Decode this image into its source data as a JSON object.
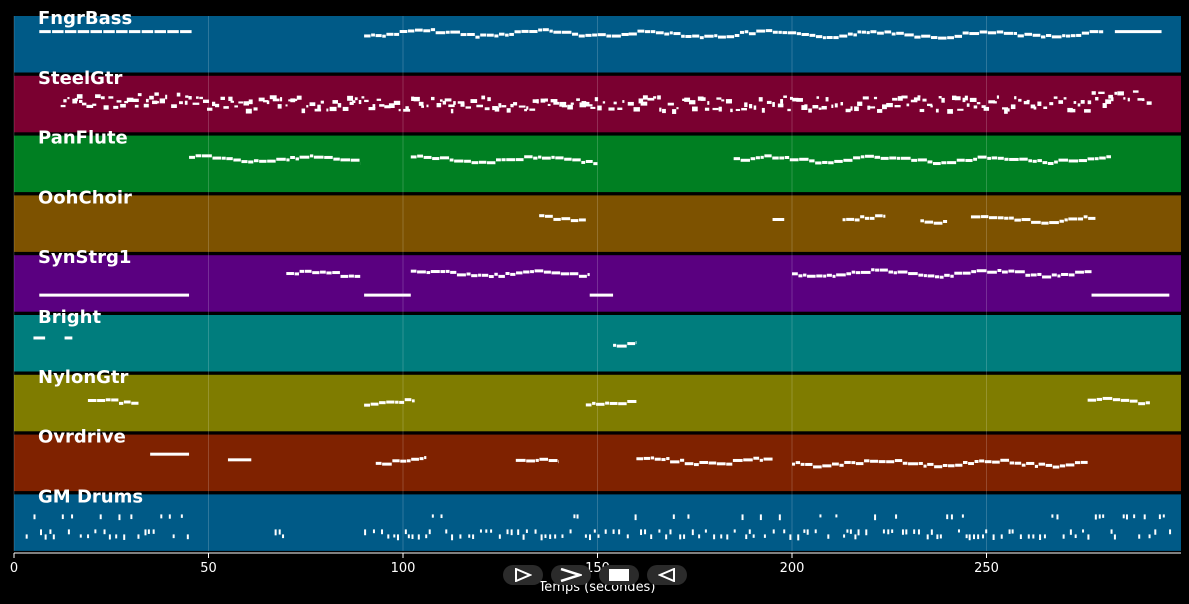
{
  "colors": {
    "background": "#000000",
    "note": "#ffffff",
    "tracks": [
      "#005a87",
      "#7a0030",
      "#007f22",
      "#7d5200",
      "#5a0080",
      "#007d7d",
      "#7f7c00",
      "#7f2200",
      "#005a87"
    ]
  },
  "controls": [
    {
      "name": "play",
      "icon": "play-outline-icon"
    },
    {
      "name": "fast-forward",
      "icon": "chevron-right-icon"
    },
    {
      "name": "stop",
      "icon": "stop-icon"
    },
    {
      "name": "rewind",
      "icon": "play-reverse-icon"
    }
  ],
  "chart_data": {
    "type": "piano-roll",
    "xlabel": "Temps (secondes)",
    "xlim": [
      0,
      300
    ],
    "xticks": [
      0,
      50,
      100,
      150,
      200,
      250
    ],
    "grid": true,
    "tracks": [
      {
        "name": "FngrBass",
        "color": "#005a87",
        "notes": [
          {
            "start": 6.5,
            "end": 45,
            "level": 0.25,
            "dash": true
          },
          {
            "start": 90,
            "end": 158,
            "level": 0.28,
            "wavy": true
          },
          {
            "start": 158,
            "end": 280,
            "level": 0.3,
            "wavy": true
          },
          {
            "start": 283,
            "end": 295,
            "level": 0.25
          }
        ]
      },
      {
        "name": "SteelGtr",
        "color": "#7a0030",
        "notes": [
          {
            "start": 12,
            "end": 45,
            "level": 0.4,
            "dense": true
          },
          {
            "start": 44,
            "end": 90,
            "level": 0.45,
            "dense": true
          },
          {
            "start": 90,
            "end": 147,
            "level": 0.45,
            "dense": true
          },
          {
            "start": 147,
            "end": 195,
            "level": 0.45,
            "dense": true
          },
          {
            "start": 195,
            "end": 276,
            "level": 0.45,
            "dense": true
          },
          {
            "start": 276,
            "end": 292,
            "level": 0.35,
            "dense": true
          }
        ]
      },
      {
        "name": "PanFlute",
        "color": "#007f22",
        "notes": [
          {
            "start": 45,
            "end": 89,
            "level": 0.4,
            "wavy": true
          },
          {
            "start": 102,
            "end": 150,
            "level": 0.4,
            "wavy": true
          },
          {
            "start": 185,
            "end": 282,
            "level": 0.4,
            "wavy": true
          }
        ]
      },
      {
        "name": "OohChoir",
        "color": "#7d5200",
        "notes": [
          {
            "start": 135,
            "end": 147,
            "level": 0.4,
            "wavy": true
          },
          {
            "start": 195,
            "end": 198,
            "level": 0.4
          },
          {
            "start": 213,
            "end": 224,
            "level": 0.4,
            "wavy": true
          },
          {
            "start": 233,
            "end": 240,
            "level": 0.4,
            "wavy": true
          },
          {
            "start": 246,
            "end": 278,
            "level": 0.4,
            "wavy": true
          }
        ]
      },
      {
        "name": "SynStrg1",
        "color": "#5a0080",
        "notes": [
          {
            "start": 70,
            "end": 89,
            "level": 0.32,
            "wavy": true
          },
          {
            "start": 102,
            "end": 148,
            "level": 0.3,
            "wavy": true
          },
          {
            "start": 200,
            "end": 277,
            "level": 0.3,
            "wavy": true
          },
          {
            "start": 6.5,
            "end": 45,
            "level": 0.68
          },
          {
            "start": 90,
            "end": 102,
            "level": 0.68
          },
          {
            "start": 148,
            "end": 154,
            "level": 0.68
          },
          {
            "start": 277,
            "end": 297,
            "level": 0.68
          }
        ]
      },
      {
        "name": "Bright",
        "color": "#007d7d",
        "notes": [
          {
            "start": 5,
            "end": 8,
            "level": 0.38
          },
          {
            "start": 13,
            "end": 15,
            "level": 0.38
          },
          {
            "start": 154,
            "end": 160,
            "level": 0.5,
            "wavy": true
          }
        ]
      },
      {
        "name": "NylonGtr",
        "color": "#7f7c00",
        "notes": [
          {
            "start": 19,
            "end": 32,
            "level": 0.45,
            "wavy": true
          },
          {
            "start": 90,
            "end": 103,
            "level": 0.45,
            "wavy": true
          },
          {
            "start": 147,
            "end": 160,
            "level": 0.45,
            "wavy": true
          },
          {
            "start": 276,
            "end": 292,
            "level": 0.45,
            "wavy": true
          }
        ]
      },
      {
        "name": "Ovrdrive",
        "color": "#7f2200",
        "notes": [
          {
            "start": 35,
            "end": 45,
            "level": 0.32
          },
          {
            "start": 55,
            "end": 61,
            "level": 0.42
          },
          {
            "start": 93,
            "end": 106,
            "level": 0.45,
            "wavy": true
          },
          {
            "start": 129,
            "end": 140,
            "level": 0.45,
            "wavy": true
          },
          {
            "start": 160,
            "end": 195,
            "level": 0.45,
            "wavy": true
          },
          {
            "start": 200,
            "end": 276,
            "level": 0.48,
            "wavy": true
          }
        ]
      },
      {
        "name": "GM Drums",
        "color": "#005a87",
        "notes": [
          {
            "start": 3,
            "end": 45,
            "level": 0.5,
            "drums": true
          },
          {
            "start": 67,
            "end": 69,
            "level": 0.5,
            "drums": true
          },
          {
            "start": 90,
            "end": 150,
            "level": 0.5,
            "drums": true
          },
          {
            "start": 150,
            "end": 297,
            "level": 0.5,
            "drums": true
          }
        ]
      }
    ]
  }
}
